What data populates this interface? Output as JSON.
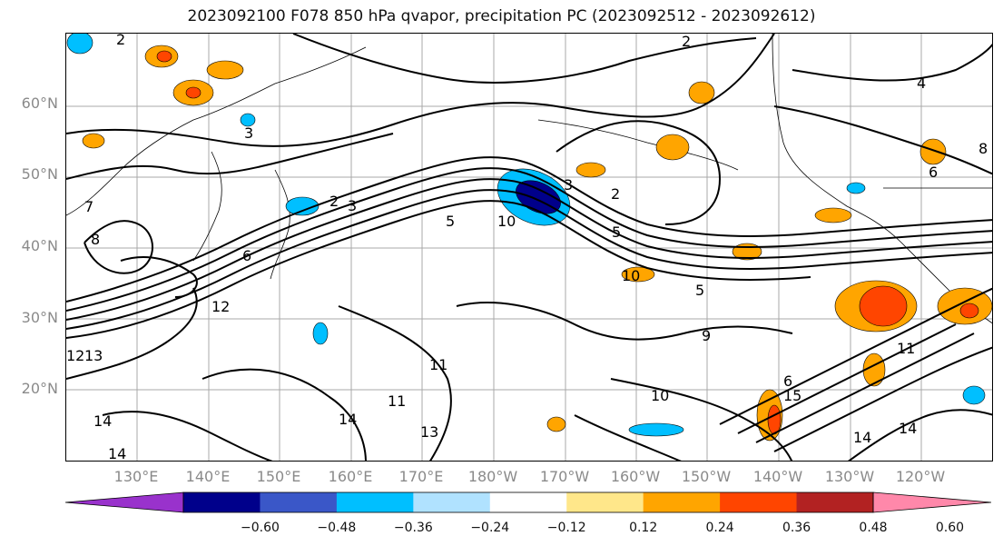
{
  "title": "2023092100 F078 850 hPa qvapor, precipitation PC (2023092512 - 2023092612)",
  "lat_labels": [
    "60°N",
    "50°N",
    "40°N",
    "30°N",
    "20°N"
  ],
  "lon_labels": [
    "130°E",
    "140°E",
    "150°E",
    "160°E",
    "170°E",
    "180°W",
    "170°W",
    "160°W",
    "150°W",
    "140°W",
    "130°W",
    "120°W"
  ],
  "contour_labels": [
    "2",
    "2",
    "2",
    "2",
    "3",
    "3",
    "3",
    "4",
    "5",
    "5",
    "5",
    "6",
    "6",
    "6",
    "7",
    "8",
    "8",
    "9",
    "10",
    "10",
    "10",
    "11",
    "11",
    "11",
    "12",
    "12",
    "13",
    "13",
    "14",
    "14",
    "14",
    "14",
    "15",
    "14"
  ],
  "colorbar": {
    "ticks": [
      "−0.60",
      "−0.48",
      "−0.36",
      "−0.24",
      "−0.12",
      "0.12",
      "0.24",
      "0.36",
      "0.48",
      "0.60"
    ],
    "colors": [
      "#9932cc",
      "#00008b",
      "#3a57c8",
      "#00bfff",
      "#b0e2ff",
      "#ffffff",
      "#ffe78a",
      "#ffa500",
      "#ff4500",
      "#b22222",
      "#ff88aa"
    ]
  },
  "colors": {
    "contour": "#000000",
    "grid": "#a8a8a8",
    "axis_label": "#8a8a8a"
  }
}
